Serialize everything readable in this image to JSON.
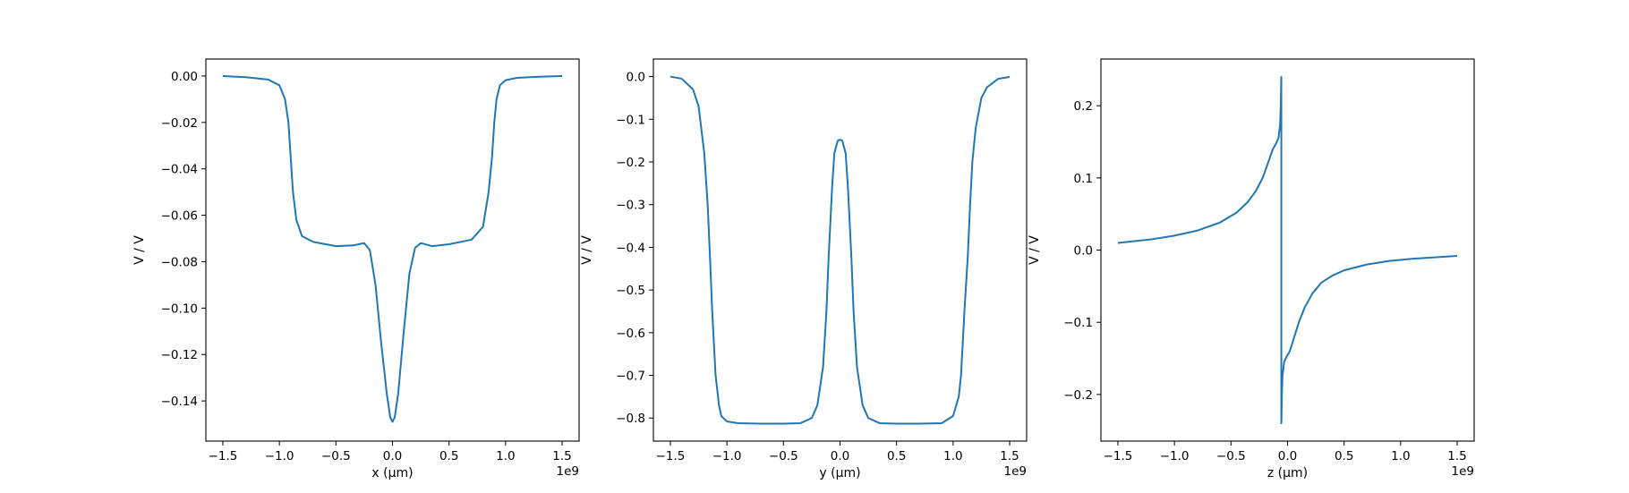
{
  "colors": {
    "series": "#1f77b4"
  },
  "chart_data": [
    {
      "type": "line",
      "xlabel": "x (μm)",
      "ylabel": "V / V",
      "x_offset_label": "1e9",
      "xlim": [
        -1.65,
        1.65
      ],
      "ylim": [
        -0.1573,
        0.0073
      ],
      "xticks": [
        -1.5,
        -1.0,
        -0.5,
        0.0,
        0.5,
        1.0,
        1.5
      ],
      "xtick_labels": [
        "−1.5",
        "−1.0",
        "−0.5",
        "0.0",
        "0.5",
        "1.0",
        "1.5"
      ],
      "yticks": [
        0.0,
        -0.02,
        -0.04,
        -0.06,
        -0.08,
        -0.1,
        -0.12,
        -0.14
      ],
      "ytick_labels": [
        "0.00",
        "−0.02",
        "−0.04",
        "−0.06",
        "−0.08",
        "−0.10",
        "−0.12",
        "−0.14"
      ],
      "grid": false,
      "series": [
        {
          "x": [
            -1.5,
            -1.3,
            -1.1,
            -1.0,
            -0.95,
            -0.92,
            -0.9,
            -0.88,
            -0.85,
            -0.8,
            -0.7,
            -0.5,
            -0.35,
            -0.25,
            -0.2,
            -0.15,
            -0.1,
            -0.05,
            -0.02,
            0.0,
            0.02,
            0.05,
            0.1,
            0.15,
            0.2,
            0.25,
            0.35,
            0.5,
            0.7,
            0.8,
            0.85,
            0.88,
            0.9,
            0.92,
            0.95,
            1.0,
            1.1,
            1.3,
            1.5
          ],
          "y": [
            0.0,
            -0.0005,
            -0.0015,
            -0.004,
            -0.01,
            -0.02,
            -0.035,
            -0.05,
            -0.062,
            -0.069,
            -0.0715,
            -0.0733,
            -0.073,
            -0.072,
            -0.075,
            -0.09,
            -0.115,
            -0.137,
            -0.147,
            -0.149,
            -0.147,
            -0.137,
            -0.11,
            -0.085,
            -0.074,
            -0.072,
            -0.0733,
            -0.0725,
            -0.0705,
            -0.065,
            -0.05,
            -0.035,
            -0.02,
            -0.01,
            -0.004,
            -0.0018,
            -0.0008,
            -0.0003,
            0.0
          ]
        }
      ]
    },
    {
      "type": "line",
      "xlabel": "y (μm)",
      "ylabel": "V / V",
      "x_offset_label": "1e9",
      "xlim": [
        -1.65,
        1.65
      ],
      "ylim": [
        -0.854,
        0.041
      ],
      "xticks": [
        -1.5,
        -1.0,
        -0.5,
        0.0,
        0.5,
        1.0,
        1.5
      ],
      "xtick_labels": [
        "−1.5",
        "−1.0",
        "−0.5",
        "0.0",
        "0.5",
        "1.0",
        "1.5"
      ],
      "yticks": [
        0.0,
        -0.1,
        -0.2,
        -0.3,
        -0.4,
        -0.5,
        -0.6,
        -0.7,
        -0.8
      ],
      "ytick_labels": [
        "0.0",
        "−0.1",
        "−0.2",
        "−0.3",
        "−0.4",
        "−0.5",
        "−0.6",
        "−0.7",
        "−0.8"
      ],
      "grid": false,
      "series": [
        {
          "x": [
            -1.5,
            -1.4,
            -1.3,
            -1.25,
            -1.2,
            -1.17,
            -1.15,
            -1.13,
            -1.1,
            -1.07,
            -1.05,
            -1.0,
            -0.9,
            -0.7,
            -0.5,
            -0.35,
            -0.25,
            -0.2,
            -0.15,
            -0.12,
            -0.1,
            -0.07,
            -0.05,
            -0.02,
            0.0,
            0.02,
            0.05,
            0.07,
            0.1,
            0.12,
            0.15,
            0.2,
            0.25,
            0.35,
            0.5,
            0.7,
            0.9,
            1.0,
            1.05,
            1.07,
            1.1,
            1.13,
            1.15,
            1.17,
            1.2,
            1.25,
            1.3,
            1.4,
            1.5
          ],
          "y": [
            0.0,
            -0.005,
            -0.03,
            -0.07,
            -0.18,
            -0.3,
            -0.42,
            -0.55,
            -0.7,
            -0.77,
            -0.795,
            -0.808,
            -0.812,
            -0.813,
            -0.813,
            -0.812,
            -0.8,
            -0.77,
            -0.68,
            -0.55,
            -0.42,
            -0.26,
            -0.18,
            -0.15,
            -0.148,
            -0.15,
            -0.18,
            -0.26,
            -0.42,
            -0.55,
            -0.68,
            -0.77,
            -0.8,
            -0.812,
            -0.813,
            -0.813,
            -0.812,
            -0.795,
            -0.75,
            -0.7,
            -0.55,
            -0.42,
            -0.3,
            -0.2,
            -0.12,
            -0.05,
            -0.025,
            -0.005,
            -0.001
          ]
        }
      ]
    },
    {
      "type": "line",
      "xlabel": "z (μm)",
      "ylabel": "V / V",
      "x_offset_label": "1e9",
      "xlim": [
        -1.65,
        1.65
      ],
      "ylim": [
        -0.2646,
        0.2647
      ],
      "xticks": [
        -1.5,
        -1.0,
        -0.5,
        0.0,
        0.5,
        1.0,
        1.5
      ],
      "xtick_labels": [
        "−1.5",
        "−1.0",
        "−0.5",
        "0.0",
        "0.5",
        "1.0",
        "1.5"
      ],
      "yticks": [
        0.2,
        0.1,
        0.0,
        -0.1,
        -0.2
      ],
      "ytick_labels": [
        "0.2",
        "0.1",
        "0.0",
        "−0.1",
        "−0.2"
      ],
      "grid": false,
      "series": [
        {
          "x": [
            -1.5,
            -1.2,
            -1.0,
            -0.8,
            -0.6,
            -0.45,
            -0.35,
            -0.28,
            -0.22,
            -0.17,
            -0.13,
            -0.1,
            -0.08,
            -0.065,
            -0.06,
            -0.055,
            -0.055,
            -0.055,
            -0.05,
            -0.045,
            -0.03,
            -0.01,
            0.02,
            0.06,
            0.1,
            0.15,
            0.22,
            0.3,
            0.4,
            0.5,
            0.7,
            0.9,
            1.1,
            1.3,
            1.5
          ],
          "y": [
            0.01,
            0.015,
            0.02,
            0.027,
            0.038,
            0.052,
            0.067,
            0.082,
            0.1,
            0.122,
            0.14,
            0.148,
            0.155,
            0.175,
            0.2,
            0.24,
            0.0,
            -0.24,
            -0.2,
            -0.175,
            -0.155,
            -0.148,
            -0.14,
            -0.12,
            -0.1,
            -0.08,
            -0.06,
            -0.045,
            -0.035,
            -0.028,
            -0.02,
            -0.015,
            -0.012,
            -0.01,
            -0.008
          ]
        }
      ]
    }
  ]
}
